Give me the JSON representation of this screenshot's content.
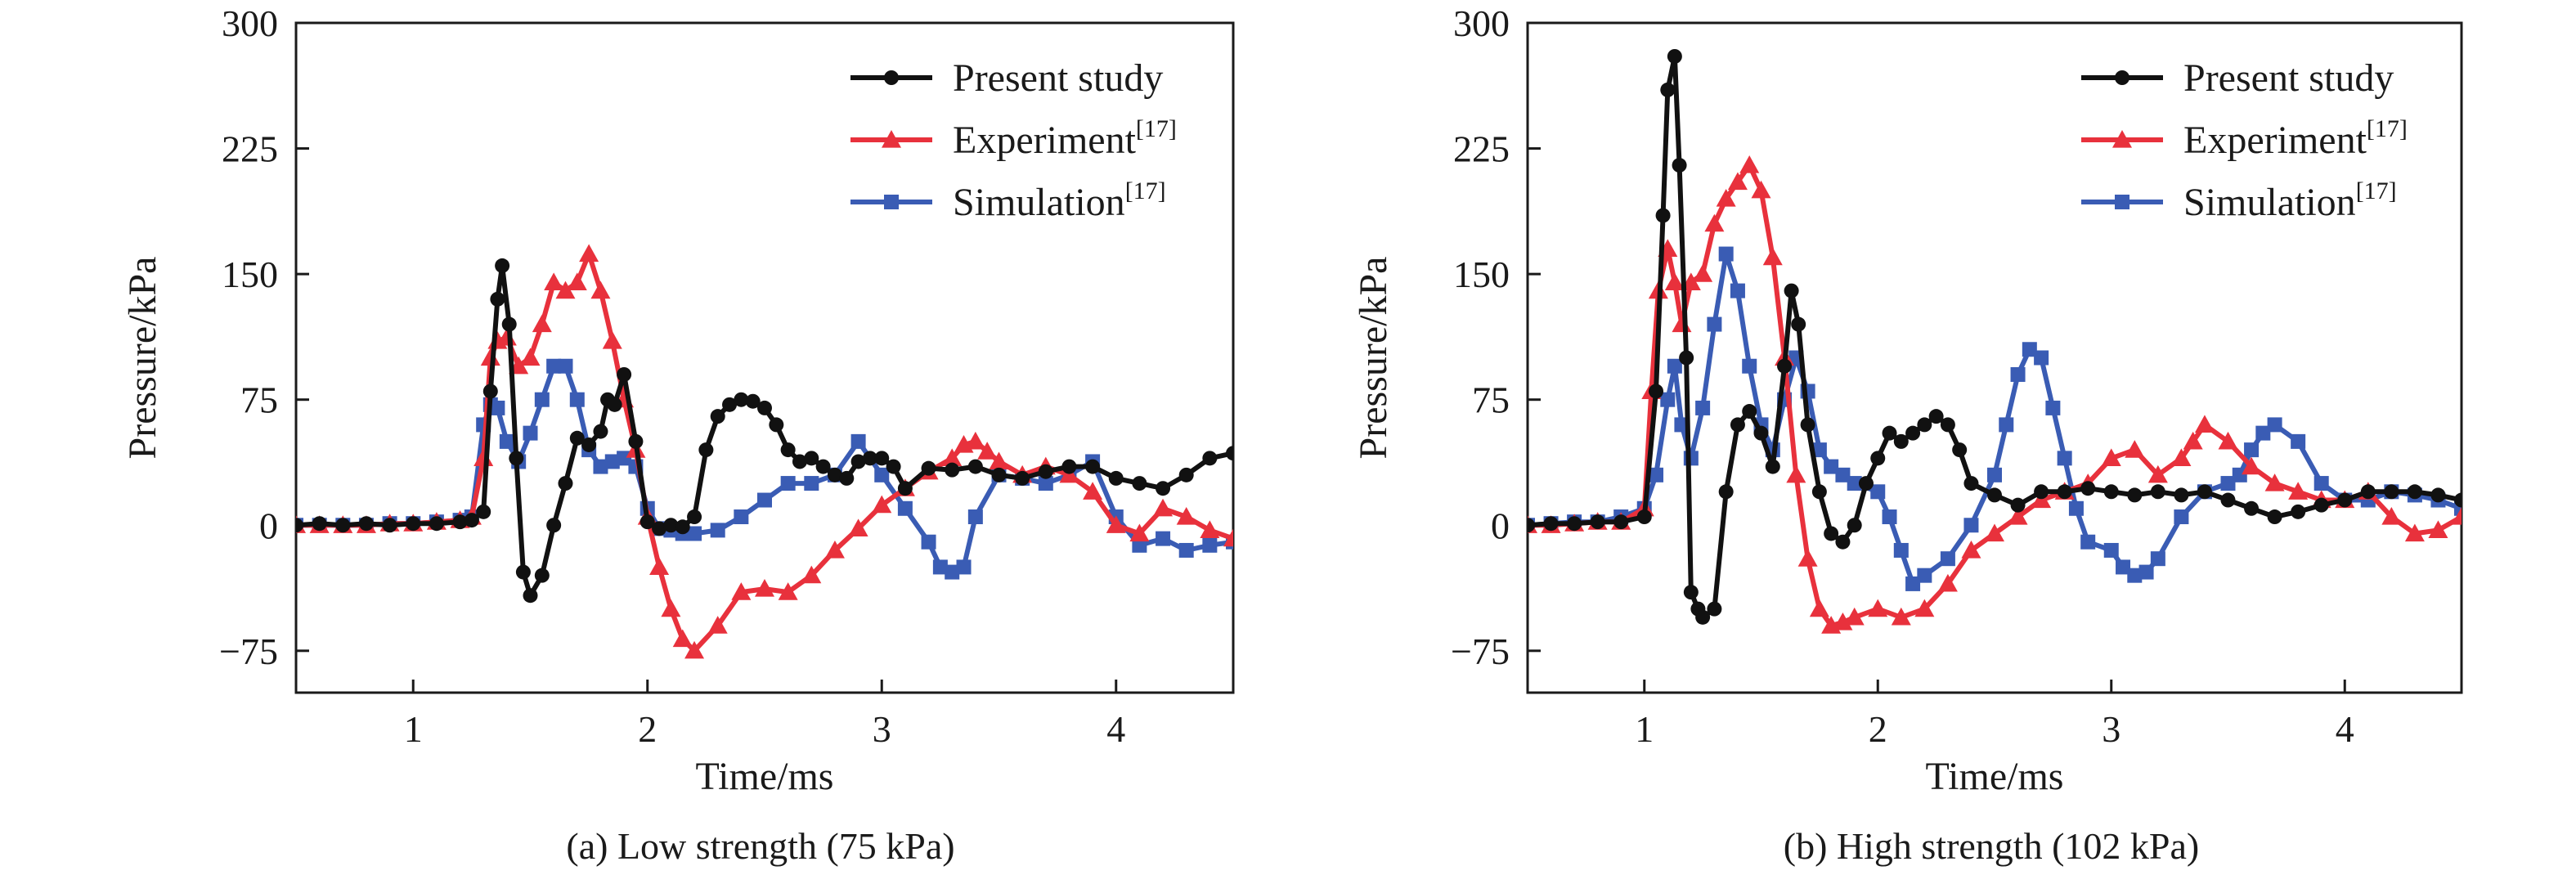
{
  "colors": {
    "present": "#111111",
    "experiment": "#e8313c",
    "simulation": "#3a5cb4",
    "axis": "#1a1a1a"
  },
  "chart_data": [
    {
      "type": "line",
      "caption": "(a) Low strength (75 kPa)",
      "xlabel": "Time/ms",
      "ylabel": "Pressure/kPa",
      "xlim": [
        0.5,
        4.5
      ],
      "ylim": [
        -100,
        300
      ],
      "xticks": [
        1,
        2,
        3,
        4
      ],
      "yticks": [
        -75,
        0,
        75,
        150,
        225,
        300
      ],
      "grid": false,
      "legend_position": "top-right",
      "series": [
        {
          "name": "Present study",
          "name_sup": "",
          "color_key": "present",
          "marker": "circle",
          "x": [
            0.5,
            0.6,
            0.7,
            0.8,
            0.9,
            1.0,
            1.1,
            1.2,
            1.25,
            1.3,
            1.33,
            1.36,
            1.38,
            1.41,
            1.44,
            1.47,
            1.5,
            1.55,
            1.6,
            1.65,
            1.7,
            1.75,
            1.8,
            1.83,
            1.86,
            1.9,
            1.95,
            2.0,
            2.05,
            2.1,
            2.15,
            2.2,
            2.25,
            2.3,
            2.35,
            2.4,
            2.45,
            2.5,
            2.55,
            2.6,
            2.65,
            2.7,
            2.75,
            2.8,
            2.85,
            2.9,
            2.95,
            3.0,
            3.05,
            3.1,
            3.2,
            3.3,
            3.4,
            3.5,
            3.6,
            3.7,
            3.8,
            3.9,
            4.0,
            4.1,
            4.2,
            4.3,
            4.4,
            4.5
          ],
          "y": [
            0,
            1,
            0,
            1,
            0,
            1,
            1,
            2,
            3,
            8,
            80,
            135,
            155,
            120,
            40,
            -28,
            -42,
            -30,
            0,
            25,
            52,
            48,
            56,
            75,
            72,
            90,
            50,
            2,
            -2,
            0,
            -1,
            5,
            45,
            65,
            72,
            75,
            74,
            70,
            60,
            45,
            38,
            40,
            35,
            30,
            28,
            38,
            40,
            40,
            35,
            22,
            34,
            33,
            35,
            30,
            28,
            32,
            35,
            35,
            28,
            25,
            22,
            30,
            40,
            43
          ]
        },
        {
          "name": "Experiment",
          "name_sup": "[17]",
          "color_key": "experiment",
          "marker": "triangle",
          "x": [
            0.5,
            0.6,
            0.7,
            0.8,
            0.9,
            1.0,
            1.1,
            1.2,
            1.25,
            1.3,
            1.33,
            1.36,
            1.4,
            1.45,
            1.5,
            1.55,
            1.6,
            1.65,
            1.7,
            1.75,
            1.8,
            1.85,
            1.9,
            1.95,
            2.0,
            2.05,
            2.1,
            2.15,
            2.2,
            2.3,
            2.4,
            2.5,
            2.6,
            2.7,
            2.8,
            2.9,
            3.0,
            3.1,
            3.2,
            3.3,
            3.35,
            3.4,
            3.45,
            3.5,
            3.6,
            3.7,
            3.8,
            3.9,
            4.0,
            4.1,
            4.2,
            4.3,
            4.4,
            4.5
          ],
          "y": [
            0,
            0,
            0,
            0,
            1,
            1,
            2,
            3,
            5,
            40,
            100,
            110,
            112,
            95,
            100,
            120,
            145,
            140,
            145,
            162,
            140,
            110,
            75,
            45,
            5,
            -25,
            -50,
            -68,
            -75,
            -60,
            -40,
            -38,
            -40,
            -30,
            -15,
            -2,
            12,
            22,
            32,
            40,
            48,
            50,
            44,
            38,
            30,
            35,
            30,
            20,
            0,
            -5,
            10,
            5,
            -3,
            -8
          ]
        },
        {
          "name": "Simulation",
          "name_sup": "[17]",
          "color_key": "simulation",
          "marker": "square",
          "x": [
            0.5,
            0.6,
            0.7,
            0.8,
            0.9,
            1.0,
            1.1,
            1.2,
            1.25,
            1.3,
            1.33,
            1.36,
            1.4,
            1.45,
            1.5,
            1.55,
            1.6,
            1.65,
            1.7,
            1.75,
            1.8,
            1.85,
            1.9,
            1.95,
            2.0,
            2.05,
            2.1,
            2.15,
            2.2,
            2.3,
            2.4,
            2.5,
            2.6,
            2.7,
            2.8,
            2.9,
            3.0,
            3.1,
            3.2,
            3.25,
            3.3,
            3.35,
            3.4,
            3.5,
            3.6,
            3.7,
            3.8,
            3.9,
            4.0,
            4.1,
            4.2,
            4.3,
            4.4,
            4.5
          ],
          "y": [
            0,
            0,
            0,
            0,
            1,
            1,
            2,
            3,
            5,
            60,
            72,
            70,
            50,
            38,
            55,
            75,
            95,
            95,
            75,
            45,
            35,
            38,
            40,
            35,
            10,
            -2,
            -3,
            -5,
            -5,
            -3,
            5,
            15,
            25,
            25,
            30,
            50,
            30,
            10,
            -10,
            -25,
            -28,
            -25,
            5,
            30,
            28,
            25,
            30,
            38,
            5,
            -12,
            -8,
            -15,
            -12,
            -10
          ]
        }
      ]
    },
    {
      "type": "line",
      "caption": "(b) High strength (102 kPa)",
      "xlabel": "Time/ms",
      "ylabel": "Pressure/kPa",
      "xlim": [
        0.5,
        4.5
      ],
      "ylim": [
        -100,
        300
      ],
      "xticks": [
        1,
        2,
        3,
        4
      ],
      "yticks": [
        -75,
        0,
        75,
        150,
        225,
        300
      ],
      "grid": false,
      "legend_position": "top-right",
      "series": [
        {
          "name": "Present study",
          "name_sup": "",
          "color_key": "present",
          "marker": "circle",
          "x": [
            0.5,
            0.6,
            0.7,
            0.8,
            0.9,
            1.0,
            1.05,
            1.08,
            1.1,
            1.13,
            1.15,
            1.18,
            1.2,
            1.23,
            1.25,
            1.3,
            1.35,
            1.4,
            1.45,
            1.5,
            1.55,
            1.6,
            1.63,
            1.66,
            1.7,
            1.75,
            1.8,
            1.85,
            1.9,
            1.95,
            2.0,
            2.05,
            2.1,
            2.15,
            2.2,
            2.25,
            2.3,
            2.35,
            2.4,
            2.5,
            2.6,
            2.7,
            2.8,
            2.9,
            3.0,
            3.1,
            3.2,
            3.3,
            3.4,
            3.5,
            3.6,
            3.7,
            3.8,
            3.9,
            4.0,
            4.1,
            4.2,
            4.3,
            4.4,
            4.5
          ],
          "y": [
            0,
            1,
            1,
            2,
            2,
            5,
            80,
            185,
            260,
            280,
            215,
            100,
            -40,
            -50,
            -55,
            -50,
            20,
            60,
            68,
            55,
            35,
            95,
            140,
            120,
            60,
            20,
            -5,
            -10,
            0,
            25,
            40,
            55,
            50,
            55,
            60,
            65,
            60,
            45,
            25,
            18,
            12,
            20,
            20,
            22,
            20,
            18,
            20,
            18,
            20,
            15,
            10,
            5,
            8,
            12,
            15,
            20,
            20,
            20,
            18,
            15
          ]
        },
        {
          "name": "Experiment",
          "name_sup": "[17]",
          "color_key": "experiment",
          "marker": "triangle",
          "x": [
            0.5,
            0.6,
            0.7,
            0.8,
            0.9,
            1.0,
            1.03,
            1.06,
            1.1,
            1.13,
            1.16,
            1.2,
            1.25,
            1.3,
            1.35,
            1.4,
            1.45,
            1.5,
            1.55,
            1.6,
            1.65,
            1.7,
            1.75,
            1.8,
            1.85,
            1.9,
            2.0,
            2.1,
            2.2,
            2.3,
            2.4,
            2.5,
            2.6,
            2.7,
            2.8,
            2.9,
            3.0,
            3.1,
            3.2,
            3.3,
            3.35,
            3.4,
            3.5,
            3.6,
            3.7,
            3.8,
            3.9,
            4.0,
            4.1,
            4.2,
            4.3,
            4.4,
            4.5
          ],
          "y": [
            0,
            0,
            1,
            2,
            2,
            10,
            80,
            140,
            165,
            145,
            120,
            145,
            150,
            180,
            195,
            205,
            215,
            200,
            160,
            100,
            30,
            -20,
            -50,
            -60,
            -58,
            -55,
            -50,
            -55,
            -50,
            -35,
            -15,
            -5,
            5,
            15,
            20,
            25,
            40,
            45,
            30,
            40,
            50,
            60,
            50,
            35,
            25,
            20,
            15,
            15,
            20,
            5,
            -5,
            -3,
            5
          ]
        },
        {
          "name": "Simulation",
          "name_sup": "[17]",
          "color_key": "simulation",
          "marker": "square",
          "x": [
            0.5,
            0.6,
            0.7,
            0.8,
            0.9,
            1.0,
            1.05,
            1.1,
            1.13,
            1.16,
            1.2,
            1.25,
            1.3,
            1.35,
            1.4,
            1.45,
            1.5,
            1.55,
            1.6,
            1.65,
            1.7,
            1.75,
            1.8,
            1.85,
            1.9,
            2.0,
            2.05,
            2.1,
            2.15,
            2.2,
            2.3,
            2.4,
            2.5,
            2.55,
            2.6,
            2.65,
            2.7,
            2.75,
            2.8,
            2.85,
            2.9,
            3.0,
            3.05,
            3.1,
            3.15,
            3.2,
            3.3,
            3.4,
            3.5,
            3.55,
            3.6,
            3.65,
            3.7,
            3.8,
            3.9,
            4.0,
            4.1,
            4.2,
            4.3,
            4.4,
            4.5
          ],
          "y": [
            0,
            1,
            2,
            2,
            5,
            10,
            30,
            75,
            95,
            60,
            40,
            70,
            120,
            162,
            140,
            95,
            60,
            45,
            75,
            100,
            80,
            45,
            35,
            30,
            25,
            20,
            5,
            -15,
            -35,
            -30,
            -20,
            0,
            30,
            60,
            90,
            105,
            100,
            70,
            40,
            10,
            -10,
            -15,
            -25,
            -30,
            -28,
            -20,
            5,
            20,
            25,
            30,
            45,
            55,
            60,
            50,
            25,
            15,
            15,
            20,
            18,
            15,
            10
          ]
        }
      ]
    }
  ]
}
